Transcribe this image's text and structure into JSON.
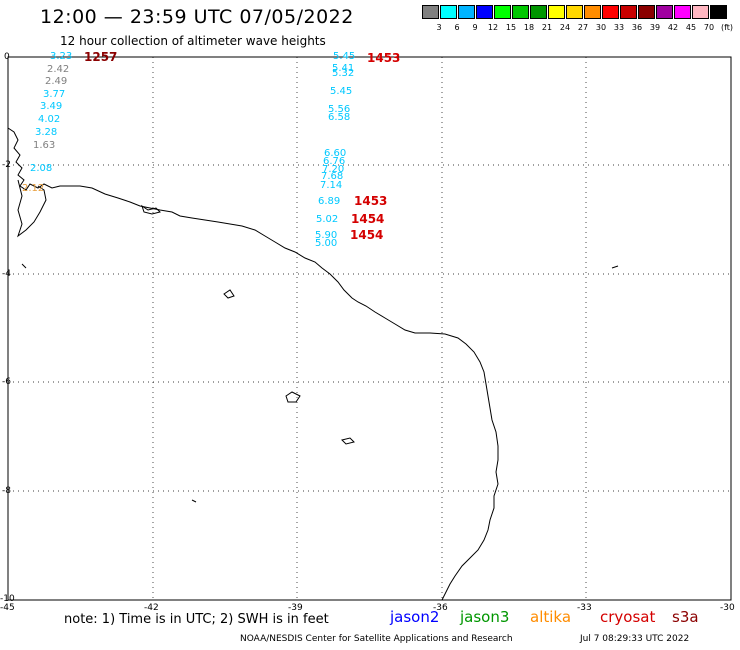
{
  "header": {
    "title": "12:00 — 23:59 UTC 07/05/2022",
    "subtitle": "12 hour collection of altimeter wave heights"
  },
  "legend": {
    "swatches": [
      {
        "color": "#808080",
        "label": "3"
      },
      {
        "color": "#00ffff",
        "label": "6"
      },
      {
        "color": "#00b4ff",
        "label": "9"
      },
      {
        "color": "#0000ff",
        "label": "12"
      },
      {
        "color": "#00ff00",
        "label": "15"
      },
      {
        "color": "#00c800",
        "label": "18"
      },
      {
        "color": "#009600",
        "label": "21"
      },
      {
        "color": "#ffff00",
        "label": "24"
      },
      {
        "color": "#ffd700",
        "label": "27"
      },
      {
        "color": "#ff8c00",
        "label": "30"
      },
      {
        "color": "#ff0000",
        "label": "33"
      },
      {
        "color": "#c80000",
        "label": "36"
      },
      {
        "color": "#8b0000",
        "label": "39"
      },
      {
        "color": "#a000a0",
        "label": "42"
      },
      {
        "color": "#ff00ff",
        "label": "45"
      },
      {
        "color": "#ffb6c1",
        "label": "70"
      },
      {
        "color": "#000000",
        "label": "(ft)"
      }
    ]
  },
  "axes": {
    "lat_labels": [
      "0",
      "-2",
      "-4",
      "-6",
      "-8",
      "-10"
    ],
    "lon_labels": [
      "-45",
      "-42",
      "-39",
      "-36",
      "-33",
      "-30"
    ]
  },
  "measurements": {
    "track_west": [
      {
        "value": "3.23",
        "color": "#00c8ff"
      },
      {
        "value": "2.42",
        "color": "#808080"
      },
      {
        "value": "2.49",
        "color": "#808080"
      },
      {
        "value": "3.77",
        "color": "#00c8ff"
      },
      {
        "value": "3.49",
        "color": "#00c8ff"
      },
      {
        "value": "4.02",
        "color": "#00c8ff"
      },
      {
        "value": "3.28",
        "color": "#00c8ff"
      },
      {
        "value": "1.63",
        "color": "#808080"
      },
      {
        "value": "2.08",
        "color": "#00c8ff"
      },
      {
        "value": "2.12",
        "color": "#e8a040"
      }
    ],
    "track_east": [
      {
        "value": "5.45",
        "color": "#00c8ff"
      },
      {
        "value": "5.41",
        "color": "#00c8ff"
      },
      {
        "value": "5.32",
        "color": "#00c8ff"
      },
      {
        "value": "5.45",
        "color": "#00c8ff"
      },
      {
        "value": "5.56",
        "color": "#00c8ff"
      },
      {
        "value": "6.58",
        "color": "#00c8ff"
      },
      {
        "value": "6.60",
        "color": "#00c8ff"
      },
      {
        "value": "6.76",
        "color": "#00c8ff"
      },
      {
        "value": "7.20",
        "color": "#00c8ff"
      },
      {
        "value": "7.68",
        "color": "#00c8ff"
      },
      {
        "value": "7.14",
        "color": "#00c8ff"
      },
      {
        "value": "6.89",
        "color": "#00c8ff"
      },
      {
        "value": "5.02",
        "color": "#00c8ff"
      },
      {
        "value": "5.90",
        "color": "#00c8ff"
      },
      {
        "value": "5.00",
        "color": "#00c8ff"
      }
    ],
    "pass_times": [
      "1257",
      "1453",
      "1453",
      "1454",
      "1454"
    ]
  },
  "footer": {
    "note": "note:  1) Time is in UTC;  2) SWH is in feet",
    "satellites": [
      {
        "name": "jason2",
        "color": "#0000ff"
      },
      {
        "name": "jason3",
        "color": "#009600"
      },
      {
        "name": "altika",
        "color": "#ff8c00"
      },
      {
        "name": "cryosat",
        "color": "#d40000"
      },
      {
        "name": "s3a",
        "color": "#8b0000"
      }
    ],
    "credit": "NOAA/NESDIS Center for Satellite Applications and Research",
    "timestamp": "Jul  7 08:29:33 UTC 2022"
  }
}
